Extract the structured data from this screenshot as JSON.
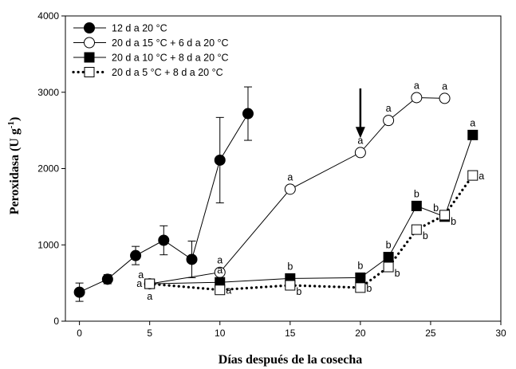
{
  "chart_data": {
    "type": "line",
    "xlabel": "Días después de la cosecha",
    "ylabel_main": "Peroxidasa (U g",
    "ylabel_sup": "-1",
    "ylabel_end": ")",
    "xlim": [
      -1,
      30
    ],
    "ylim": [
      0,
      4000
    ],
    "xticks": [
      0,
      5,
      10,
      15,
      20,
      25,
      30
    ],
    "yticks": [
      0,
      1000,
      2000,
      3000,
      4000
    ],
    "grid": false,
    "legend_position": "top-left",
    "arrow_at": {
      "x": 20,
      "y_from": 3050,
      "y_to": 2400
    },
    "series": [
      {
        "name": "12 d a 20 °C",
        "marker": "circle",
        "fill": "filled",
        "line": "solid",
        "points": [
          {
            "x": 0,
            "y": 380,
            "err": 120
          },
          {
            "x": 2,
            "y": 550,
            "err": 60
          },
          {
            "x": 4,
            "y": 860,
            "err": 120
          },
          {
            "x": 6,
            "y": 1060,
            "err": 190
          },
          {
            "x": 8,
            "y": 810,
            "err": 240
          },
          {
            "x": 10,
            "y": 2110,
            "err": 560
          },
          {
            "x": 12,
            "y": 2720,
            "err": 350
          }
        ]
      },
      {
        "name": "20 d a 15 °C + 6 d a 20 °C",
        "marker": "circle",
        "fill": "open",
        "line": "solid",
        "points": [
          {
            "x": 5,
            "y": 490,
            "label": "a",
            "label_pos": "left"
          },
          {
            "x": 10,
            "y": 640,
            "label": "a",
            "label_pos": "above"
          },
          {
            "x": 15,
            "y": 1730,
            "label": "a",
            "label_pos": "above"
          },
          {
            "x": 20,
            "y": 2210,
            "label": "a",
            "label_pos": "above"
          },
          {
            "x": 22,
            "y": 2630,
            "label": "a",
            "label_pos": "above"
          },
          {
            "x": 24,
            "y": 2930,
            "label": "a",
            "label_pos": "above"
          },
          {
            "x": 26,
            "y": 2920,
            "label": "a",
            "label_pos": "above"
          }
        ]
      },
      {
        "name": "20 d a 10 °C + 8 d a 20 °C",
        "marker": "square",
        "fill": "filled",
        "line": "solid",
        "points": [
          {
            "x": 5,
            "y": 490,
            "label": "a",
            "label_pos": "above-left"
          },
          {
            "x": 10,
            "y": 510,
            "label": "a",
            "label_pos": "above"
          },
          {
            "x": 15,
            "y": 560,
            "label": "b",
            "label_pos": "above"
          },
          {
            "x": 20,
            "y": 570,
            "label": "b",
            "label_pos": "above"
          },
          {
            "x": 22,
            "y": 840,
            "label": "b",
            "label_pos": "above"
          },
          {
            "x": 24,
            "y": 1510,
            "label": "b",
            "label_pos": "above"
          },
          {
            "x": 26,
            "y": 1370,
            "label": "b",
            "label_pos": "above-left"
          },
          {
            "x": 28,
            "y": 2440,
            "label": "a",
            "label_pos": "above"
          }
        ]
      },
      {
        "name": "20 d a 5 °C + 8 d a 20 °C",
        "marker": "square",
        "fill": "open",
        "line": "dotted",
        "points": [
          {
            "x": 5,
            "y": 490,
            "label": "a",
            "label_pos": "below"
          },
          {
            "x": 10,
            "y": 410,
            "label": "a",
            "label_pos": "right"
          },
          {
            "x": 15,
            "y": 470,
            "label": "b",
            "label_pos": "below-right"
          },
          {
            "x": 20,
            "y": 440,
            "label": "b",
            "label_pos": "right"
          },
          {
            "x": 22,
            "y": 710,
            "label": "b",
            "label_pos": "below-right"
          },
          {
            "x": 24,
            "y": 1200,
            "label": "b",
            "label_pos": "below-right"
          },
          {
            "x": 26,
            "y": 1390,
            "label": "b",
            "label_pos": "below-right"
          },
          {
            "x": 28,
            "y": 1910,
            "label": "a",
            "label_pos": "right"
          }
        ]
      }
    ]
  }
}
